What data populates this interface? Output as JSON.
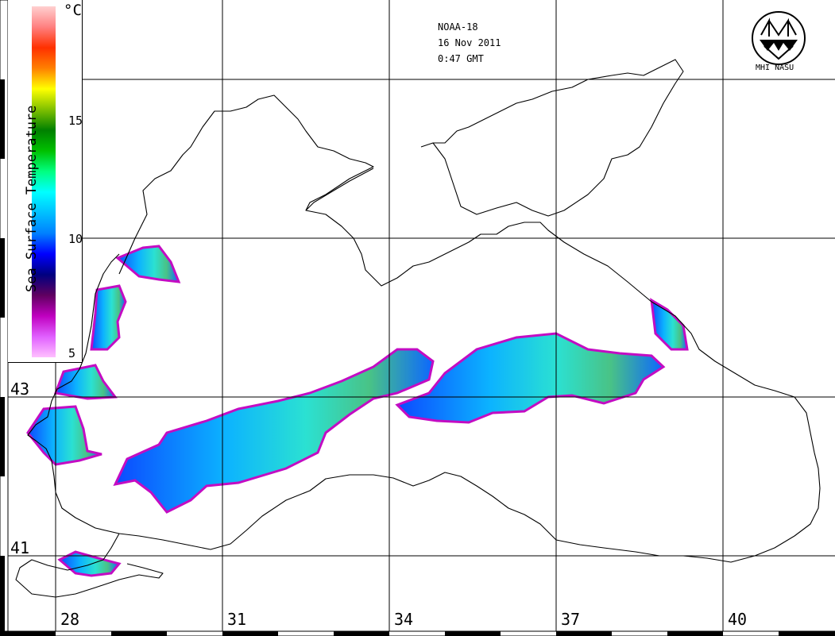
{
  "header": {
    "satellite": "NOAA-18",
    "date": "16 Nov 2011",
    "time": "0:47 GMT"
  },
  "logo": {
    "icon": "mhi-nasu-logo-icon",
    "label": "MHI NASU"
  },
  "legend": {
    "title": "Sea Surface Temperature",
    "unit": "°C",
    "ticks": [
      "15",
      "10",
      "5"
    ],
    "range": [
      5,
      19
    ],
    "colors": [
      "#ffc0ff",
      "#e060ff",
      "#c000c0",
      "#600060",
      "#000080",
      "#0000ff",
      "#0080ff",
      "#00c0ff",
      "#00ffff",
      "#00ff80",
      "#00c000",
      "#008000",
      "#80c000",
      "#ffff00",
      "#ff8000",
      "#ff3000",
      "#ff8080",
      "#ffd0d0"
    ]
  },
  "axes": {
    "latitude_labels": [
      "43",
      "41"
    ],
    "longitude_labels": [
      "28",
      "31",
      "34",
      "37",
      "40"
    ]
  }
}
